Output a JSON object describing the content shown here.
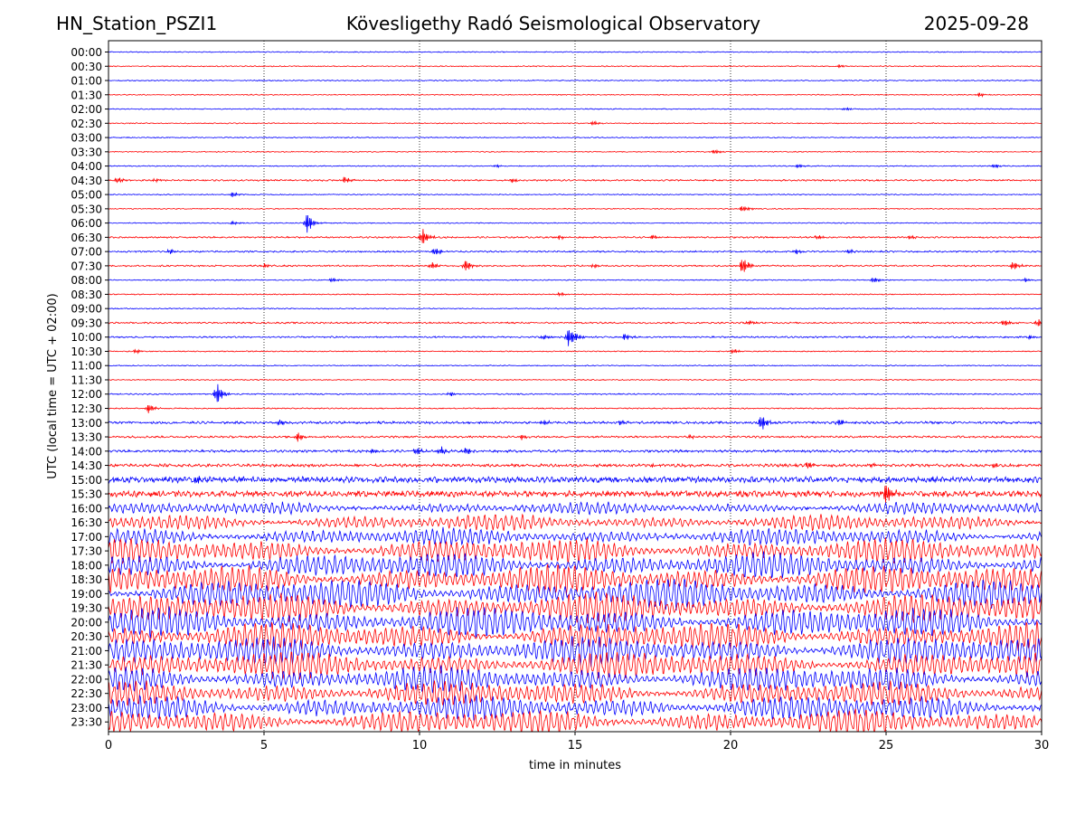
{
  "header": {
    "station": "HN_Station_PSZI1",
    "observatory": "Kövesligethy Radó Seismological Observatory",
    "date": "2025-09-28"
  },
  "chart_data": {
    "type": "line",
    "xlabel": "time in minutes",
    "ylabel": "UTC (local time = UTC + 02:00)",
    "xlim": [
      0,
      30
    ],
    "xticks": [
      0,
      5,
      10,
      15,
      20,
      25,
      30
    ],
    "grid": "vertical dotted lines at 5-minute intervals",
    "colors": {
      "even_rows": "#0000ff",
      "odd_rows": "#ff0000",
      "axis": "#000000"
    },
    "rows": [
      {
        "label": "00:00",
        "color": "#0000ff",
        "amplitude": 0.05,
        "events": []
      },
      {
        "label": "00:30",
        "color": "#ff0000",
        "amplitude": 0.05,
        "events": [
          [
            23.5,
            0.2
          ]
        ]
      },
      {
        "label": "01:00",
        "color": "#0000ff",
        "amplitude": 0.05,
        "events": []
      },
      {
        "label": "01:30",
        "color": "#ff0000",
        "amplitude": 0.05,
        "events": [
          [
            28.0,
            0.3
          ]
        ]
      },
      {
        "label": "02:00",
        "color": "#0000ff",
        "amplitude": 0.05,
        "events": [
          [
            23.7,
            0.2
          ]
        ]
      },
      {
        "label": "02:30",
        "color": "#ff0000",
        "amplitude": 0.05,
        "events": [
          [
            15.6,
            0.35
          ]
        ]
      },
      {
        "label": "03:00",
        "color": "#0000ff",
        "amplitude": 0.05,
        "events": []
      },
      {
        "label": "03:30",
        "color": "#ff0000",
        "amplitude": 0.05,
        "events": [
          [
            19.5,
            0.3
          ]
        ]
      },
      {
        "label": "04:00",
        "color": "#0000ff",
        "amplitude": 0.05,
        "events": [
          [
            12.5,
            0.2
          ],
          [
            22.2,
            0.3
          ],
          [
            28.5,
            0.3
          ]
        ]
      },
      {
        "label": "04:30",
        "color": "#ff0000",
        "amplitude": 0.08,
        "events": [
          [
            0.3,
            0.4
          ],
          [
            1.5,
            0.3
          ],
          [
            7.6,
            0.5
          ],
          [
            13.0,
            0.3
          ]
        ]
      },
      {
        "label": "05:00",
        "color": "#0000ff",
        "amplitude": 0.05,
        "events": [
          [
            4.0,
            0.4
          ]
        ]
      },
      {
        "label": "05:30",
        "color": "#ff0000",
        "amplitude": 0.05,
        "events": [
          [
            20.4,
            0.5
          ]
        ]
      },
      {
        "label": "06:00",
        "color": "#0000ff",
        "amplitude": 0.05,
        "events": [
          [
            6.4,
            1.5
          ],
          [
            4.0,
            0.3
          ]
        ]
      },
      {
        "label": "06:30",
        "color": "#ff0000",
        "amplitude": 0.08,
        "events": [
          [
            10.1,
            1.2
          ],
          [
            14.5,
            0.3
          ],
          [
            17.5,
            0.3
          ],
          [
            22.8,
            0.3
          ],
          [
            25.8,
            0.3
          ]
        ]
      },
      {
        "label": "07:00",
        "color": "#0000ff",
        "amplitude": 0.08,
        "events": [
          [
            2.0,
            0.4
          ],
          [
            10.5,
            0.6
          ],
          [
            22.1,
            0.4
          ],
          [
            23.8,
            0.3
          ]
        ]
      },
      {
        "label": "07:30",
        "color": "#ff0000",
        "amplitude": 0.08,
        "events": [
          [
            5.0,
            0.3
          ],
          [
            10.4,
            0.5
          ],
          [
            11.5,
            0.8
          ],
          [
            15.6,
            0.3
          ],
          [
            20.4,
            1.3
          ],
          [
            29.1,
            0.7
          ]
        ]
      },
      {
        "label": "08:00",
        "color": "#0000ff",
        "amplitude": 0.05,
        "events": [
          [
            7.2,
            0.3
          ],
          [
            24.6,
            0.4
          ],
          [
            29.5,
            0.3
          ]
        ]
      },
      {
        "label": "08:30",
        "color": "#ff0000",
        "amplitude": 0.05,
        "events": [
          [
            14.5,
            0.25
          ]
        ]
      },
      {
        "label": "09:00",
        "color": "#0000ff",
        "amplitude": 0.05,
        "events": []
      },
      {
        "label": "09:30",
        "color": "#ff0000",
        "amplitude": 0.08,
        "events": [
          [
            20.6,
            0.3
          ],
          [
            28.8,
            0.5
          ],
          [
            29.9,
            0.5
          ]
        ]
      },
      {
        "label": "10:00",
        "color": "#0000ff",
        "amplitude": 0.08,
        "events": [
          [
            14.0,
            0.4
          ],
          [
            14.8,
            1.4
          ],
          [
            15.0,
            0.5
          ],
          [
            16.6,
            0.5
          ],
          [
            29.6,
            0.3
          ]
        ]
      },
      {
        "label": "10:30",
        "color": "#ff0000",
        "amplitude": 0.05,
        "events": [
          [
            0.9,
            0.3
          ],
          [
            20.1,
            0.35
          ]
        ]
      },
      {
        "label": "11:00",
        "color": "#0000ff",
        "amplitude": 0.05,
        "events": []
      },
      {
        "label": "11:30",
        "color": "#ff0000",
        "amplitude": 0.05,
        "events": []
      },
      {
        "label": "12:00",
        "color": "#0000ff",
        "amplitude": 0.06,
        "events": [
          [
            3.5,
            1.5
          ],
          [
            11.0,
            0.3
          ]
        ]
      },
      {
        "label": "12:30",
        "color": "#ff0000",
        "amplitude": 0.06,
        "events": [
          [
            1.3,
            0.7
          ]
        ]
      },
      {
        "label": "13:00",
        "color": "#0000ff",
        "amplitude": 0.12,
        "events": [
          [
            5.5,
            0.4
          ],
          [
            14.0,
            0.4
          ],
          [
            16.5,
            0.4
          ],
          [
            21.0,
            1.2
          ],
          [
            23.5,
            0.5
          ]
        ]
      },
      {
        "label": "13:30",
        "color": "#ff0000",
        "amplitude": 0.1,
        "events": [
          [
            6.1,
            0.7
          ],
          [
            13.3,
            0.4
          ],
          [
            18.7,
            0.3
          ]
        ]
      },
      {
        "label": "14:00",
        "color": "#0000ff",
        "amplitude": 0.12,
        "events": [
          [
            8.5,
            0.3
          ],
          [
            9.9,
            0.6
          ],
          [
            10.7,
            0.6
          ],
          [
            11.5,
            0.5
          ]
        ]
      },
      {
        "label": "14:30",
        "color": "#ff0000",
        "amplitude": 0.15,
        "events": [
          [
            17.5,
            0.3
          ],
          [
            22.5,
            0.5
          ],
          [
            24.5,
            0.4
          ],
          [
            28.5,
            0.4
          ]
        ]
      },
      {
        "label": "15:00",
        "color": "#0000ff",
        "amplitude": 0.3,
        "events": [
          [
            2.8,
            0.4
          ]
        ]
      },
      {
        "label": "15:30",
        "color": "#ff0000",
        "amplitude": 0.3,
        "events": [
          [
            25.0,
            1.8
          ]
        ]
      },
      {
        "label": "16:00",
        "color": "#0000ff",
        "amplitude": 0.9,
        "events": []
      },
      {
        "label": "16:30",
        "color": "#ff0000",
        "amplitude": 1.2,
        "events": []
      },
      {
        "label": "17:00",
        "color": "#0000ff",
        "amplitude": 1.3,
        "events": []
      },
      {
        "label": "17:30",
        "color": "#ff0000",
        "amplitude": 1.9,
        "events": []
      },
      {
        "label": "18:00",
        "color": "#0000ff",
        "amplitude": 1.9,
        "events": []
      },
      {
        "label": "18:30",
        "color": "#ff0000",
        "amplitude": 2.2,
        "events": []
      },
      {
        "label": "19:00",
        "color": "#0000ff",
        "amplitude": 2.3,
        "events": []
      },
      {
        "label": "19:30",
        "color": "#ff0000",
        "amplitude": 2.3,
        "events": []
      },
      {
        "label": "20:00",
        "color": "#0000ff",
        "amplitude": 2.3,
        "events": []
      },
      {
        "label": "20:30",
        "color": "#ff0000",
        "amplitude": 2.2,
        "events": []
      },
      {
        "label": "21:00",
        "color": "#0000ff",
        "amplitude": 2.2,
        "events": []
      },
      {
        "label": "21:30",
        "color": "#ff0000",
        "amplitude": 2.1,
        "events": []
      },
      {
        "label": "22:00",
        "color": "#0000ff",
        "amplitude": 2.0,
        "events": []
      },
      {
        "label": "22:30",
        "color": "#ff0000",
        "amplitude": 1.9,
        "events": []
      },
      {
        "label": "23:00",
        "color": "#0000ff",
        "amplitude": 1.9,
        "events": []
      },
      {
        "label": "23:30",
        "color": "#ff0000",
        "amplitude": 1.9,
        "events": []
      }
    ]
  }
}
